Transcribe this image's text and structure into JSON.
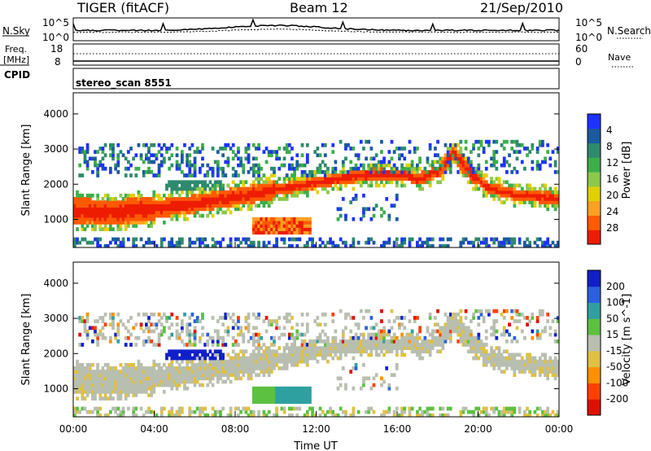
{
  "header": {
    "title": "TIGER (fitACF)",
    "beam": "Beam 12",
    "date": "21/Sep/2010"
  },
  "top_panels": {
    "nsky_label": "N.Sky",
    "nsky_top": "10^5",
    "nsky_bottom": "10^0",
    "nsearch_label": "N.Search",
    "nsearch_top": "10^5",
    "nsearch_bottom": "10^0",
    "freq_label": "Freq.",
    "freq_unit": "[MHz]",
    "freq_tick_top": "18",
    "freq_tick_bottom": "8",
    "nave_label": "Nave",
    "nave_tick_top": "60",
    "nave_tick_bottom": "0",
    "cpid_label": "CPID",
    "cpid_value": "stereo_scan 8551"
  },
  "chart_data": [
    {
      "type": "heatmap",
      "name": "power",
      "ylabel": "Slant Range [km]",
      "xlabel": "",
      "ylim": [
        200,
        4600
      ],
      "yticks": [
        1000,
        2000,
        3000,
        4000
      ],
      "xlim": [
        0,
        24
      ],
      "colorbar": {
        "label": "Power [dB]",
        "ticks": [
          "4",
          "8",
          "12",
          "16",
          "20",
          "24",
          "28"
        ],
        "colors": [
          "#1e32ff",
          "#1a5aa0",
          "#2e8a6e",
          "#3cae4a",
          "#8cc84a",
          "#e0d000",
          "#ffa020",
          "#ff5a00",
          "#ee1c00"
        ]
      }
    },
    {
      "type": "heatmap",
      "name": "velocity",
      "ylabel": "Slant Range [km]",
      "xlabel": "Time UT",
      "ylim": [
        200,
        4600
      ],
      "yticks": [
        1000,
        2000,
        3000,
        4000
      ],
      "xlim": [
        0,
        24
      ],
      "xticks": [
        "00:00",
        "04:00",
        "08:00",
        "12:00",
        "16:00",
        "20:00",
        "00:00"
      ],
      "colorbar": {
        "label": "Velocity [m s^-1]",
        "ticks": [
          "200",
          "100",
          "50",
          "15",
          "-15",
          "-50",
          "-100",
          "-200"
        ],
        "colors": [
          "#1020c8",
          "#2a60e0",
          "#2fa0a0",
          "#5cc040",
          "#b8bfb0",
          "#e0c040",
          "#ff9000",
          "#ff4000",
          "#e01000"
        ]
      }
    }
  ]
}
